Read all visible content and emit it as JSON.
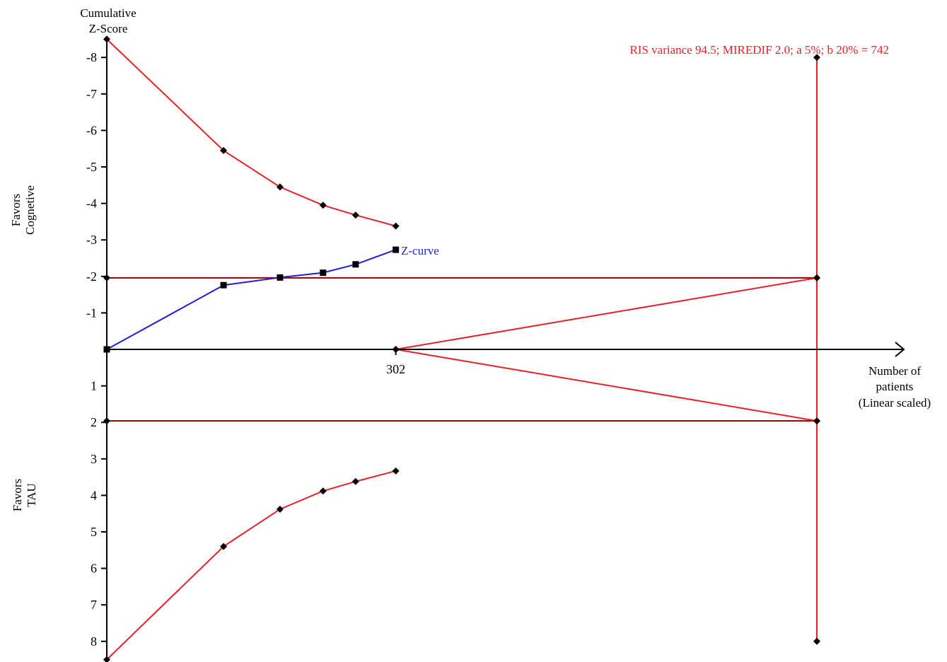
{
  "chart_data": {
    "type": "line",
    "y_axis": {
      "title_lines": [
        "Cumulative",
        "Z-Score"
      ],
      "ylim": [
        8.5,
        -8.5
      ],
      "inverted": true,
      "ticks": [
        -8,
        -7,
        -6,
        -5,
        -4,
        -3,
        -2,
        -1,
        1,
        2,
        3,
        4,
        5,
        6,
        7,
        8
      ],
      "tick_labels": [
        "-8",
        "-7",
        "-6",
        "-5",
        "-4",
        "-3",
        "-2",
        "-1",
        "1",
        "2",
        "3",
        "4",
        "5",
        "6",
        "7",
        "8"
      ]
    },
    "x_axis": {
      "title_lines": [
        "Number of",
        "patients",
        "(Linear scaled)"
      ],
      "xlim": [
        0,
        742
      ],
      "tick_values": [
        302
      ],
      "tick_labels": [
        "302"
      ]
    },
    "side_labels": {
      "upper": [
        "Favors",
        "Cognetive"
      ],
      "lower": [
        "Favors",
        "TAU"
      ]
    },
    "ris_annotation": "RIS variance 94.5; MIREDIF 2.0; a 5%; b 20% = 742",
    "ris_value": 742,
    "series": [
      {
        "name": "Z-curve",
        "color": "#1f1fd6",
        "marker": "square",
        "x": [
          0,
          122,
          181,
          226,
          260,
          302
        ],
        "y": [
          0,
          -1.76,
          -1.97,
          -2.1,
          -2.33,
          -2.73
        ]
      },
      {
        "color": "#e8202a",
        "marker": "diamond",
        "x": [
          0,
          122,
          181,
          226,
          260,
          302
        ],
        "y": [
          -8.5,
          -5.45,
          -4.45,
          -3.95,
          -3.68,
          -3.38
        ]
      },
      {
        "color": "#e8202a",
        "marker": "diamond",
        "x": [
          0,
          122,
          181,
          226,
          260,
          302
        ],
        "y": [
          8.5,
          5.4,
          4.38,
          3.88,
          3.62,
          3.33
        ]
      },
      {
        "color": "#e8202a",
        "marker": "diamond",
        "x": [
          302,
          742
        ],
        "y": [
          0,
          -1.96
        ]
      },
      {
        "color": "#e8202a",
        "marker": "diamond",
        "x": [
          302,
          742
        ],
        "y": [
          0,
          1.96
        ]
      },
      {
        "color": "#e8202a",
        "marker": "diamond",
        "x": [
          742,
          742,
          742,
          742
        ],
        "y": [
          -8.0,
          -1.96,
          1.96,
          8.0
        ]
      }
    ],
    "conventional_boundaries": {
      "color": "#8b0000",
      "y": [
        -1.96,
        1.96
      ],
      "x": [
        0,
        742
      ]
    },
    "z_curve_label": "Z-curve"
  }
}
